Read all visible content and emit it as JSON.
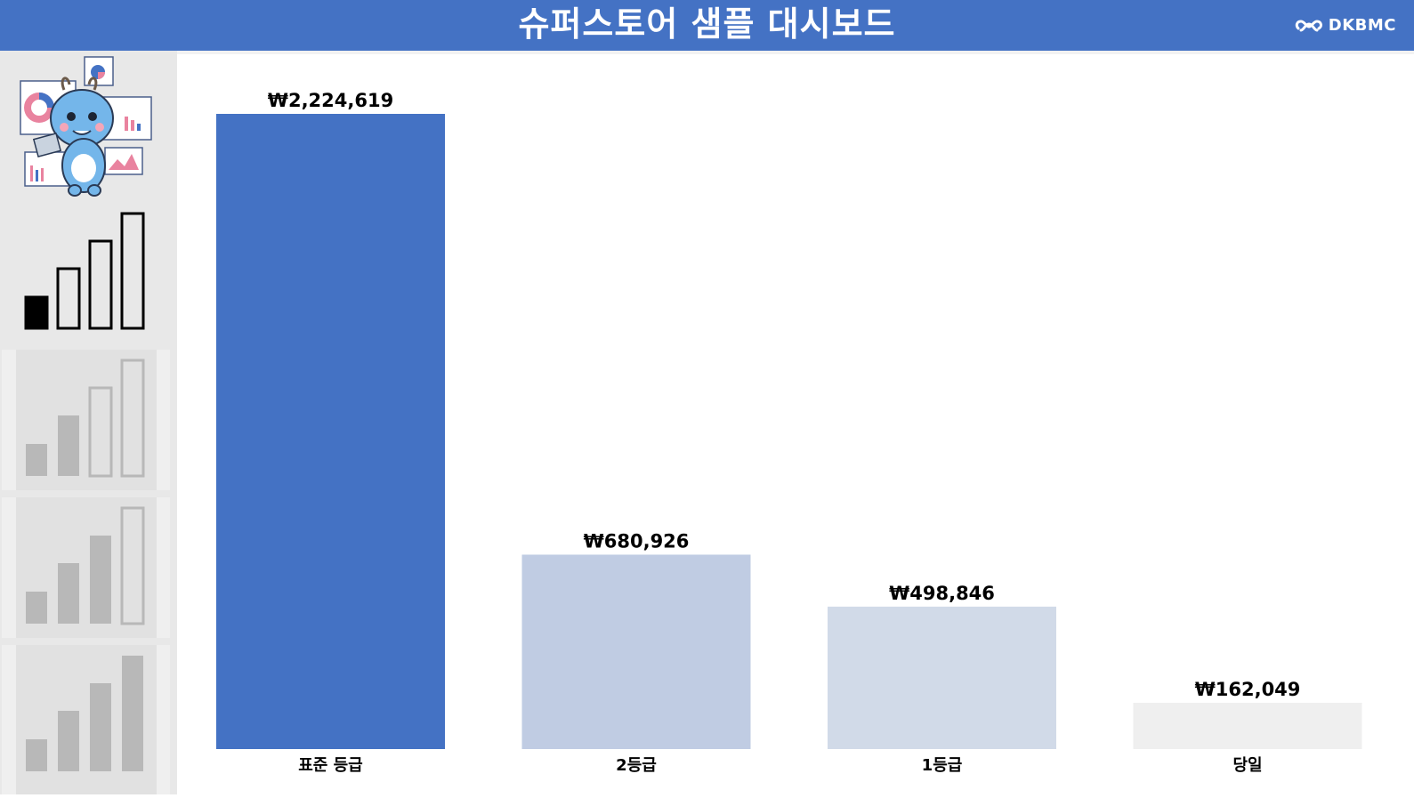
{
  "header": {
    "title": "슈퍼스토어 샘플 대시보드",
    "brand": "DKBMC",
    "icon": "dkbmc-logo-icon"
  },
  "sidebar": {
    "mascot_icon": "dragon-mascot-dashboard-icon",
    "nav": [
      {
        "icon": "signal-bars-1-icon",
        "state": "active"
      },
      {
        "icon": "signal-bars-2-icon",
        "state": "inactive"
      },
      {
        "icon": "signal-bars-3-icon",
        "state": "inactive"
      },
      {
        "icon": "signal-bars-4-icon",
        "state": "inactive"
      }
    ]
  },
  "colors": {
    "header": "#4472c4",
    "bar_1": "#4472c4",
    "bar_2": "#c0cce3",
    "bar_3": "#d1dae8",
    "bar_4": "#efefef"
  },
  "chart_data": {
    "type": "bar",
    "categories": [
      "표준 등급",
      "2등급",
      "1등급",
      "당일"
    ],
    "values": [
      2224619,
      680926,
      498846,
      162049
    ],
    "data_labels": [
      "₩2,224,619",
      "₩680,926",
      "₩498,846",
      "₩162,049"
    ],
    "colors": [
      "#4472c4",
      "#c0cce3",
      "#d1dae8",
      "#efefef"
    ],
    "title": "",
    "xlabel": "",
    "ylabel": "",
    "ylim": [
      0,
      2224619
    ],
    "grid": false,
    "legend": "none"
  }
}
